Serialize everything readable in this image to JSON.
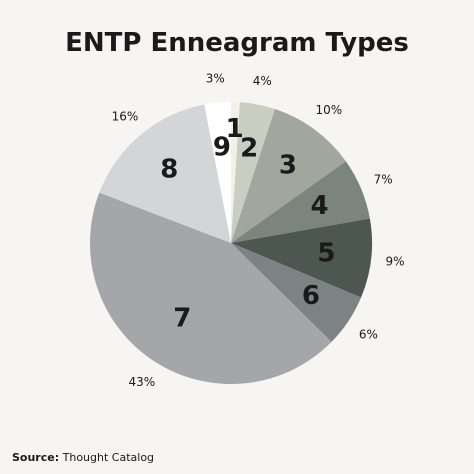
{
  "chart_data": {
    "type": "pie",
    "title": "ENTP Enneagram Types",
    "categories": [
      "1",
      "2",
      "3",
      "4",
      "5",
      "6",
      "7",
      "8",
      "9"
    ],
    "values": [
      1,
      4,
      10,
      7,
      9,
      6,
      43,
      16,
      3
    ],
    "percent_labels": [
      "",
      "4%",
      "10%",
      "7%",
      "9%",
      "6%",
      "43%",
      "16%",
      "3%"
    ],
    "colors": [
      "#f3f1e6",
      "#c9cdc2",
      "#a1a79d",
      "#7c857d",
      "#4d5752",
      "#7d8285",
      "#a4a6aa",
      "#d4d5d9",
      "#ffffff"
    ]
  },
  "source": {
    "label": "Source:",
    "text": "Thought Catalog"
  }
}
